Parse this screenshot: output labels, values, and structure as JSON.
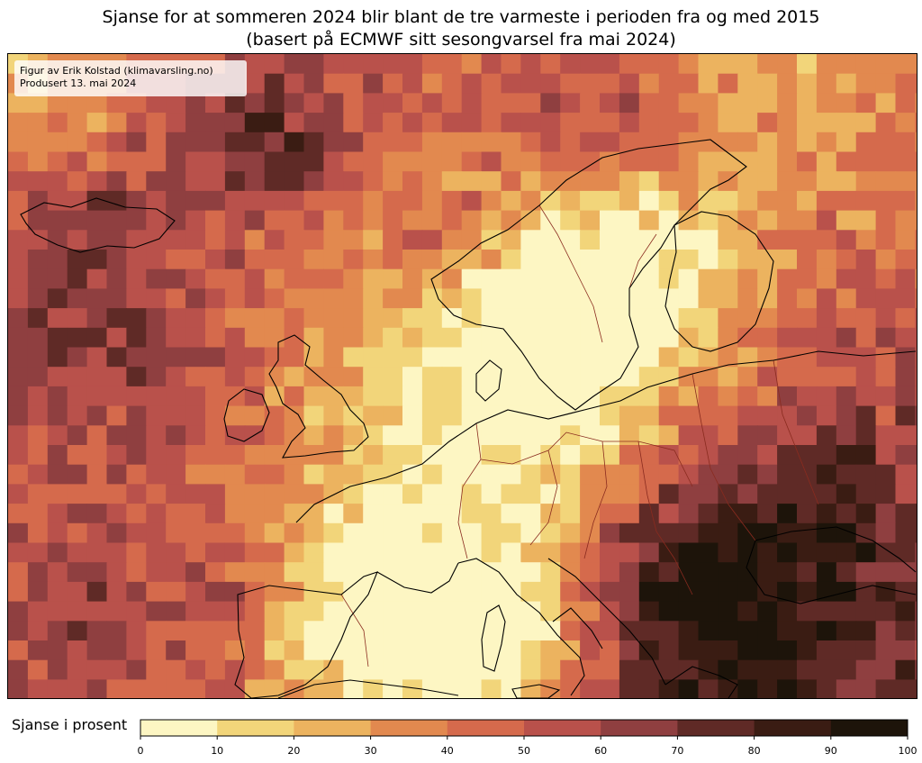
{
  "title": {
    "line1": "Sjanse for at sommeren 2024 blir blant de tre varmeste i perioden fra og med 2015",
    "line2": "(basert på ECMWF sitt sesongvarsel fra mai 2024)"
  },
  "credit": {
    "line1": "Figur av Erik Kolstad (klimavarsling.no)",
    "line2": "Produsert 13. mai 2024"
  },
  "colorbar": {
    "label": "Sjanse i prosent",
    "ticks": [
      "0",
      "10",
      "20",
      "30",
      "40",
      "50",
      "60",
      "70",
      "80",
      "90",
      "100"
    ],
    "bins": [
      {
        "range": "0-10",
        "color": "#fdf6c3"
      },
      {
        "range": "10-20",
        "color": "#f2d57a"
      },
      {
        "range": "20-30",
        "color": "#ecb35f"
      },
      {
        "range": "30-40",
        "color": "#e2894f"
      },
      {
        "range": "40-50",
        "color": "#d56a4c"
      },
      {
        "range": "50-60",
        "color": "#b9514b"
      },
      {
        "range": "60-70",
        "color": "#8f3f40"
      },
      {
        "range": "70-80",
        "color": "#5f2a26"
      },
      {
        "range": "80-90",
        "color": "#3a1c13"
      },
      {
        "range": "90-100",
        "color": "#1d140a"
      }
    ]
  },
  "map": {
    "type": "heatmap",
    "region": "Europe and North Atlantic",
    "variable": "Chance (%) that summer 2024 is among the three warmest since 2015",
    "land_outline_color": "#000000",
    "border_color": "#8a2b1f"
  }
}
